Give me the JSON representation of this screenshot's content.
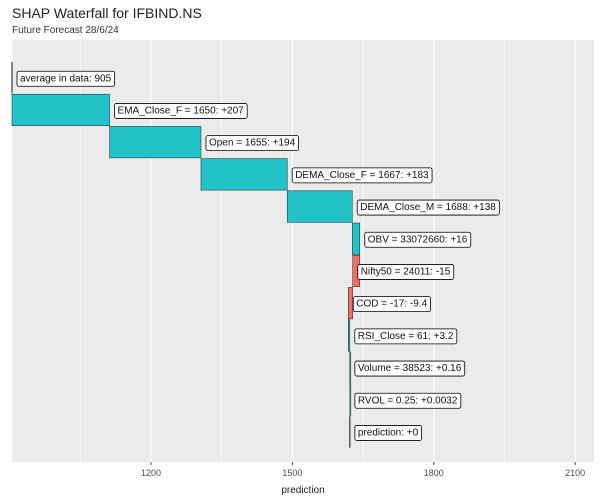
{
  "chart_data": {
    "type": "waterfall",
    "title": "SHAP Waterfall for IFBIND.NS",
    "subtitle": "Future Forecast 28/6/24",
    "xlabel": "prediction",
    "xticks": [
      1200,
      1500,
      1800,
      2100
    ],
    "xlim": [
      905,
      2140
    ],
    "baseline": 905,
    "grid": true,
    "colors": {
      "positive": "#1fc3c8",
      "negative": "#ef6f67",
      "panel": "#ebebeb",
      "grid": "#ffffff"
    },
    "steps": [
      {
        "label": "average in data: 905",
        "start": 905,
        "end": 905
      },
      {
        "label": "EMA_Close_F = 1650: +207",
        "start": 905,
        "end": 1112
      },
      {
        "label": "Open = 1655: +194",
        "start": 1112,
        "end": 1306
      },
      {
        "label": "DEMA_Close_F = 1667: +183",
        "start": 1306,
        "end": 1489
      },
      {
        "label": "DEMA_Close_M = 1688: +138",
        "start": 1489,
        "end": 1627
      },
      {
        "label": "OBV = 33072660: +16",
        "start": 1627,
        "end": 1643
      },
      {
        "label": "Nifty50 = 24011: -15",
        "start": 1643,
        "end": 1628
      },
      {
        "label": "COD = -17: -9.4",
        "start": 1628,
        "end": 1618.6
      },
      {
        "label": "RSI_Close = 61: +3.2",
        "start": 1618.6,
        "end": 1621.8
      },
      {
        "label": "Volume = 38523: +0.16",
        "start": 1621.8,
        "end": 1621.96
      },
      {
        "label": "RVOL = 0.25: +0.0032",
        "start": 1621.96,
        "end": 1621.9632
      },
      {
        "label": "prediction: +0",
        "start": 1621.9632,
        "end": 1621.9632
      }
    ]
  }
}
